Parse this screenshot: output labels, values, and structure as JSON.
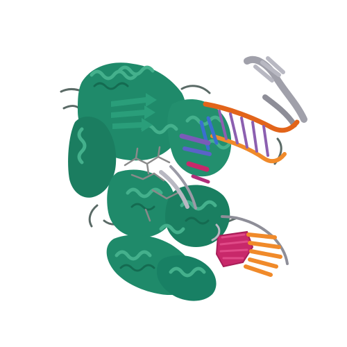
{
  "scene": {
    "background": "#ffffff",
    "subject": "protein-dna-complex-ribbon"
  },
  "colors": {
    "protein": "#1f8a6a",
    "protein_light": "#44b08c",
    "protein_dark": "#146b51",
    "dna_backbone_a": "#e2641a",
    "dna_backbone_b": "#f08a2a",
    "dna_backbone_grey": "#9a9aa6",
    "base_pairs_magenta": "#c8286a",
    "base_pairs_purple": "#7a5bb8",
    "base_pairs_blue": "#3a6fd0",
    "ligand_grey": "#8a8a8a",
    "coil": "#5a6a66"
  }
}
